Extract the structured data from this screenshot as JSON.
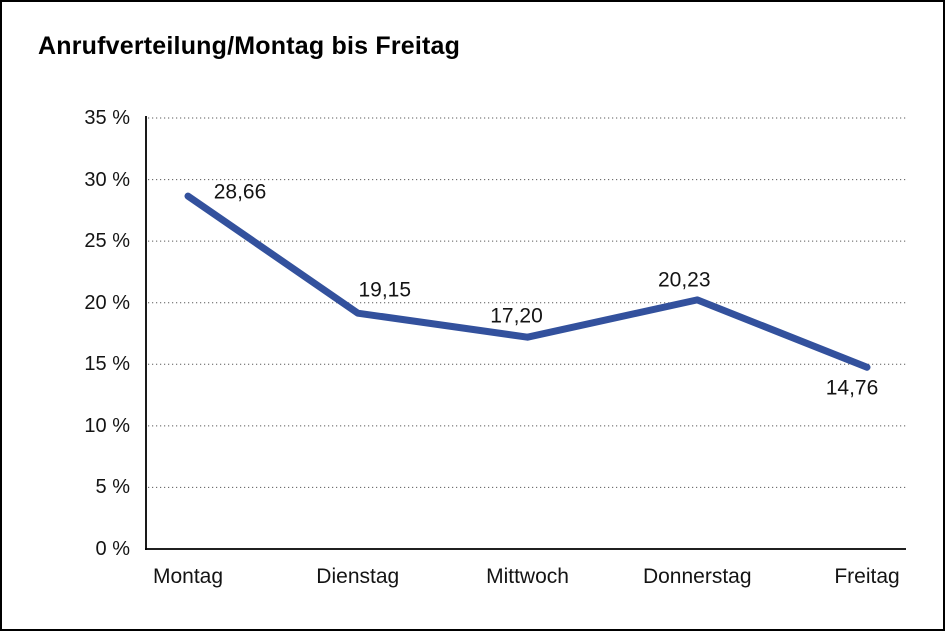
{
  "frame": {
    "border_color": "#000000",
    "background_color": "#ffffff"
  },
  "chart_data": {
    "type": "line",
    "title": "Anrufverteilung/Montag bis Freitag",
    "categories": [
      "Montag",
      "Dienstag",
      "Mittwoch",
      "Donnerstag",
      "Freitag"
    ],
    "series": [
      {
        "name": "Anrufverteilung",
        "values": [
          28.66,
          19.15,
          17.2,
          20.23,
          14.76
        ]
      }
    ],
    "value_labels": [
      "28,66",
      "19,15",
      "17,20",
      "20,23",
      "14,76"
    ],
    "y_ticks": [
      0,
      5,
      10,
      15,
      20,
      25,
      30,
      35
    ],
    "y_tick_labels": [
      "0 %",
      "5 %",
      "10 %",
      "15 %",
      "20 %",
      "25 %",
      "30 %",
      "35 %"
    ],
    "xlabel": "",
    "ylabel": "",
    "ylim": [
      0,
      35
    ],
    "grid": "horizontal-dotted",
    "legend": "none",
    "line_color": "#33519d",
    "axis_color": "#000000",
    "gridline_color": "#5a5a5a",
    "text_color": "#141414"
  }
}
